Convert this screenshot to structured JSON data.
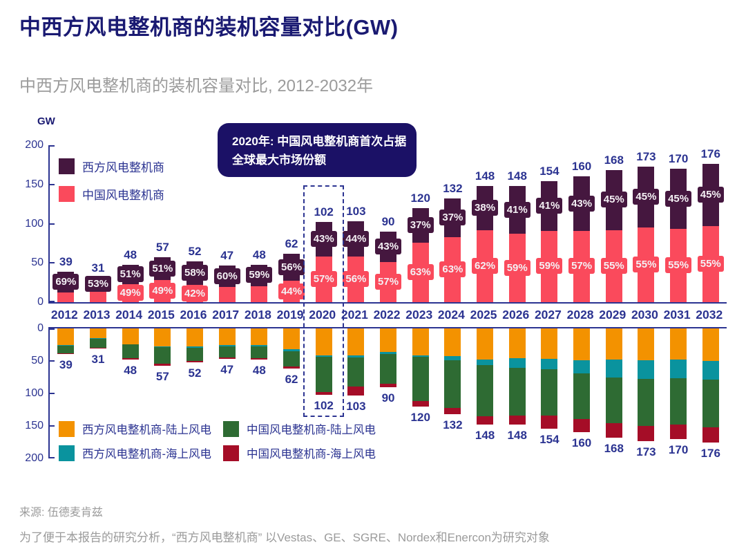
{
  "page": {
    "title": "中西方风电整机商的装机容量对比(GW)",
    "subtitle": "中西方风电整机商的装机容量对比, 2012-2032年",
    "source": "来源: 伍德麦肯兹",
    "note": "为了便于本报告的研究分析，“西方风电整机商” 以Vestas、GE、SGRE、Nordex和Enercon为研究对象"
  },
  "annotation": {
    "line1": "2020年: 中国风电整机商首次占据",
    "line2": "全球最大市场份额",
    "highlighted_year": "2020"
  },
  "axis": {
    "unit_label": "GW",
    "yticks_top": [
      0,
      50,
      100,
      150,
      200
    ],
    "yticks_bottom": [
      0,
      50,
      100,
      150,
      200
    ]
  },
  "colors": {
    "title_navy": "#1a1a72",
    "text_navy": "#2b3391",
    "annotation_bg": "#1b1166",
    "subtitle_gray": "#9b9b9b",
    "west": "#45173f",
    "china": "#fa4a5c",
    "west_onshore": "#f39200",
    "west_offshore": "#0a939e",
    "china_onshore": "#2e6b33",
    "china_offshore": "#a50d27"
  },
  "chart_data": [
    {
      "type": "bar",
      "stacked": true,
      "orientation": "up",
      "title": "中西方风电整机商的装机容量对比, 2012-2032年",
      "ylabel": "GW",
      "ylim": [
        0,
        200
      ],
      "legend_position": "upper-left",
      "grid": false,
      "categories": [
        "2012",
        "2013",
        "2014",
        "2015",
        "2016",
        "2017",
        "2018",
        "2019",
        "2020",
        "2021",
        "2022",
        "2023",
        "2024",
        "2025",
        "2026",
        "2027",
        "2028",
        "2029",
        "2030",
        "2031",
        "2032"
      ],
      "totals": [
        39,
        31,
        48,
        57,
        52,
        47,
        48,
        62,
        102,
        103,
        90,
        120,
        132,
        148,
        148,
        154,
        160,
        168,
        173,
        170,
        176
      ],
      "series": [
        {
          "name": "西方风电整机商",
          "color": "#45173f",
          "values": [
            27,
            16,
            25,
            29,
            30,
            28,
            28,
            35,
            44,
            45,
            39,
            44,
            49,
            56,
            61,
            63,
            69,
            76,
            78,
            77,
            79
          ],
          "pct_labels": [
            "69%",
            "53%",
            "51%",
            "51%",
            "58%",
            "60%",
            "59%",
            "56%",
            "43%",
            "44%",
            "43%",
            "37%",
            "37%",
            "38%",
            "41%",
            "41%",
            "43%",
            "45%",
            "45%",
            "45%",
            "45%"
          ]
        },
        {
          "name": "中国风电整机商",
          "color": "#fa4a5c",
          "values": [
            12,
            15,
            23,
            28,
            22,
            19,
            20,
            27,
            58,
            58,
            51,
            76,
            83,
            92,
            87,
            91,
            91,
            92,
            95,
            93,
            97
          ],
          "pct_labels": [
            "",
            "",
            "49%",
            "49%",
            "42%",
            "",
            "",
            "44%",
            "57%",
            "56%",
            "57%",
            "63%",
            "63%",
            "62%",
            "59%",
            "59%",
            "57%",
            "55%",
            "55%",
            "55%",
            "55%"
          ]
        }
      ]
    },
    {
      "type": "bar",
      "stacked": true,
      "orientation": "down",
      "ylim": [
        0,
        200
      ],
      "legend_position": "lower-left",
      "grid": false,
      "categories": [
        "2012",
        "2013",
        "2014",
        "2015",
        "2016",
        "2017",
        "2018",
        "2019",
        "2020",
        "2021",
        "2022",
        "2023",
        "2024",
        "2025",
        "2026",
        "2027",
        "2028",
        "2029",
        "2030",
        "2031",
        "2032"
      ],
      "totals": [
        39,
        31,
        48,
        57,
        52,
        47,
        48,
        62,
        102,
        103,
        90,
        120,
        132,
        148,
        148,
        154,
        160,
        168,
        173,
        170,
        176
      ],
      "series": [
        {
          "name": "西方风电整机商-陆上风电",
          "color": "#f39200",
          "values": [
            26,
            15,
            24,
            28,
            28,
            26,
            26,
            32,
            42,
            42,
            36,
            41,
            43,
            48,
            46,
            47,
            49,
            48,
            49,
            48,
            50
          ]
        },
        {
          "name": "西方风电整机商-海上风电",
          "color": "#0a939e",
          "values": [
            1,
            1,
            1,
            1,
            2,
            2,
            2,
            3,
            2,
            3,
            3,
            3,
            6,
            8,
            15,
            16,
            20,
            28,
            29,
            29,
            29
          ]
        },
        {
          "name": "中国风电整机商-陆上风电",
          "color": "#2e6b33",
          "values": [
            11,
            14,
            21,
            25,
            20,
            17,
            18,
            24,
            54,
            44,
            46,
            68,
            73,
            79,
            73,
            71,
            70,
            70,
            72,
            71,
            73
          ]
        },
        {
          "name": "中国风电整机商-海上风电",
          "color": "#a50d27",
          "values": [
            1,
            1,
            2,
            3,
            2,
            2,
            2,
            3,
            4,
            14,
            5,
            8,
            10,
            13,
            14,
            20,
            21,
            22,
            23,
            22,
            24
          ]
        }
      ]
    }
  ]
}
